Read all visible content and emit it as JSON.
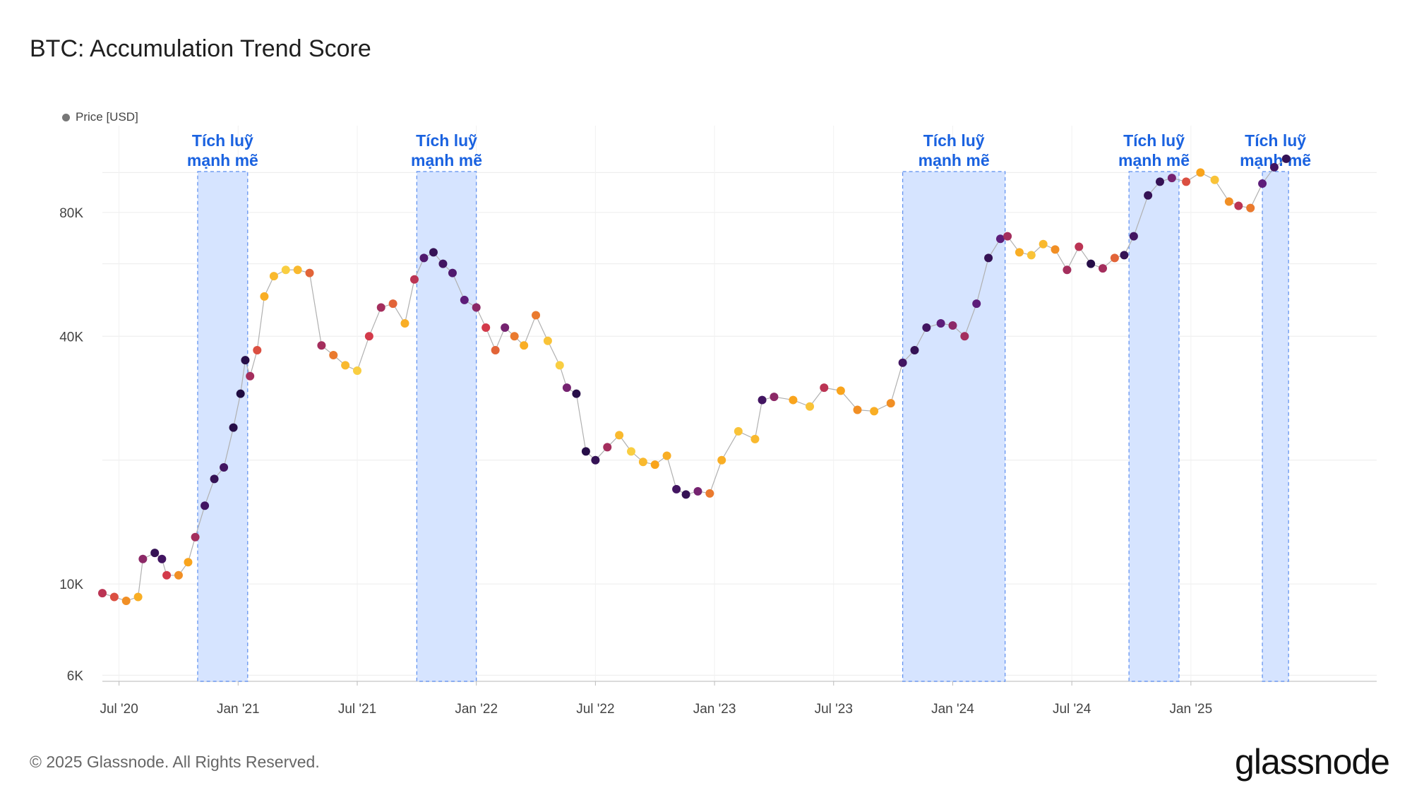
{
  "header": {
    "title": "BTC: Accumulation Trend Score"
  },
  "legend": {
    "label": "Price [USD]"
  },
  "footer": {
    "copyright": "© 2025 Glassnode. All Rights Reserved.",
    "brand": "glassnode"
  },
  "colors": {
    "band_fill": "#d6e4ff",
    "band_stroke": "#5b8def",
    "band_label": "#1a62e0",
    "score_high": "#1a0a3c",
    "score_mid": "#d33a4a",
    "score_low": "#f9d84a"
  },
  "chart_data": {
    "type": "scatter",
    "title": "BTC: Accumulation Trend Score",
    "series_name": "Price [USD]",
    "y_scale": "log",
    "ylim": [
      5800,
      130000
    ],
    "xlim": [
      2020.43,
      2025.78
    ],
    "y_ticks": [
      {
        "value": 6000,
        "label": "6K"
      },
      {
        "value": 10000,
        "label": "10K"
      },
      {
        "value": 40000,
        "label": "40K"
      },
      {
        "value": 80000,
        "label": "80K"
      }
    ],
    "y_grid": [
      6000,
      10000,
      20000,
      40000,
      60000,
      80000,
      100000
    ],
    "x_ticks": [
      {
        "value": 2020.5,
        "label": "Jul '20"
      },
      {
        "value": 2021.0,
        "label": "Jan '21"
      },
      {
        "value": 2021.5,
        "label": "Jul '21"
      },
      {
        "value": 2022.0,
        "label": "Jan '22"
      },
      {
        "value": 2022.5,
        "label": "Jul '22"
      },
      {
        "value": 2023.0,
        "label": "Jan '23"
      },
      {
        "value": 2023.5,
        "label": "Jul '23"
      },
      {
        "value": 2024.0,
        "label": "Jan '24"
      },
      {
        "value": 2024.5,
        "label": "Jul '24"
      },
      {
        "value": 2025.0,
        "label": "Jan '25"
      }
    ],
    "bands": [
      {
        "start": 2020.83,
        "end": 2021.04,
        "label_line1": "Tích luỹ",
        "label_line2": "mạnh mẽ"
      },
      {
        "start": 2021.75,
        "end": 2022.0,
        "label_line1": "Tích luỹ",
        "label_line2": "mạnh mẽ"
      },
      {
        "start": 2023.79,
        "end": 2024.22,
        "label_line1": "Tích luỹ",
        "label_line2": "mạnh mẽ"
      },
      {
        "start": 2024.74,
        "end": 2024.95,
        "label_line1": "Tích luỹ",
        "label_line2": "mạnh mẽ"
      },
      {
        "start": 2025.3,
        "end": 2025.41,
        "label_line1": "Tích luỹ",
        "label_line2": "mạnh mẽ"
      }
    ],
    "points": [
      [
        2020.43,
        9500,
        0.55
      ],
      [
        2020.48,
        9300,
        0.45
      ],
      [
        2020.53,
        9100,
        0.3
      ],
      [
        2020.58,
        9300,
        0.2
      ],
      [
        2020.6,
        11500,
        0.65
      ],
      [
        2020.65,
        11900,
        0.9
      ],
      [
        2020.68,
        11500,
        0.85
      ],
      [
        2020.7,
        10500,
        0.5
      ],
      [
        2020.75,
        10500,
        0.3
      ],
      [
        2020.79,
        11300,
        0.25
      ],
      [
        2020.82,
        13000,
        0.6
      ],
      [
        2020.86,
        15500,
        0.85
      ],
      [
        2020.9,
        18000,
        0.9
      ],
      [
        2020.94,
        19200,
        0.85
      ],
      [
        2020.98,
        24000,
        0.95
      ],
      [
        2021.01,
        29000,
        0.98
      ],
      [
        2021.03,
        35000,
        0.95
      ],
      [
        2021.05,
        32000,
        0.6
      ],
      [
        2021.08,
        37000,
        0.45
      ],
      [
        2021.11,
        50000,
        0.2
      ],
      [
        2021.15,
        56000,
        0.15
      ],
      [
        2021.2,
        58000,
        0.05
      ],
      [
        2021.25,
        58000,
        0.15
      ],
      [
        2021.3,
        57000,
        0.4
      ],
      [
        2021.35,
        38000,
        0.6
      ],
      [
        2021.4,
        36000,
        0.35
      ],
      [
        2021.45,
        34000,
        0.15
      ],
      [
        2021.5,
        33000,
        0.05
      ],
      [
        2021.55,
        40000,
        0.5
      ],
      [
        2021.6,
        47000,
        0.6
      ],
      [
        2021.65,
        48000,
        0.4
      ],
      [
        2021.7,
        43000,
        0.2
      ],
      [
        2021.74,
        55000,
        0.55
      ],
      [
        2021.78,
        62000,
        0.8
      ],
      [
        2021.82,
        64000,
        0.9
      ],
      [
        2021.86,
        60000,
        0.85
      ],
      [
        2021.9,
        57000,
        0.8
      ],
      [
        2021.95,
        49000,
        0.75
      ],
      [
        2022.0,
        47000,
        0.65
      ],
      [
        2022.04,
        42000,
        0.5
      ],
      [
        2022.08,
        37000,
        0.4
      ],
      [
        2022.12,
        42000,
        0.7
      ],
      [
        2022.16,
        40000,
        0.35
      ],
      [
        2022.2,
        38000,
        0.2
      ],
      [
        2022.25,
        45000,
        0.35
      ],
      [
        2022.3,
        39000,
        0.1
      ],
      [
        2022.35,
        34000,
        0.05
      ],
      [
        2022.38,
        30000,
        0.7
      ],
      [
        2022.42,
        29000,
        0.95
      ],
      [
        2022.46,
        21000,
        0.95
      ],
      [
        2022.5,
        20000,
        0.9
      ],
      [
        2022.55,
        21500,
        0.6
      ],
      [
        2022.6,
        23000,
        0.15
      ],
      [
        2022.65,
        21000,
        0.05
      ],
      [
        2022.7,
        19800,
        0.15
      ],
      [
        2022.75,
        19500,
        0.25
      ],
      [
        2022.8,
        20500,
        0.2
      ],
      [
        2022.84,
        17000,
        0.85
      ],
      [
        2022.88,
        16500,
        0.9
      ],
      [
        2022.93,
        16800,
        0.7
      ],
      [
        2022.98,
        16600,
        0.35
      ],
      [
        2023.03,
        20000,
        0.2
      ],
      [
        2023.1,
        23500,
        0.1
      ],
      [
        2023.17,
        22500,
        0.15
      ],
      [
        2023.2,
        28000,
        0.85
      ],
      [
        2023.25,
        28500,
        0.65
      ],
      [
        2023.33,
        28000,
        0.25
      ],
      [
        2023.4,
        27000,
        0.1
      ],
      [
        2023.46,
        30000,
        0.55
      ],
      [
        2023.53,
        29500,
        0.25
      ],
      [
        2023.6,
        26500,
        0.3
      ],
      [
        2023.67,
        26300,
        0.2
      ],
      [
        2023.74,
        27500,
        0.3
      ],
      [
        2023.79,
        34500,
        0.85
      ],
      [
        2023.84,
        37000,
        0.9
      ],
      [
        2023.89,
        42000,
        0.85
      ],
      [
        2023.95,
        43000,
        0.75
      ],
      [
        2024.0,
        42500,
        0.65
      ],
      [
        2024.05,
        40000,
        0.6
      ],
      [
        2024.1,
        48000,
        0.75
      ],
      [
        2024.15,
        62000,
        0.9
      ],
      [
        2024.2,
        69000,
        0.75
      ],
      [
        2024.23,
        70000,
        0.6
      ],
      [
        2024.28,
        64000,
        0.2
      ],
      [
        2024.33,
        63000,
        0.1
      ],
      [
        2024.38,
        67000,
        0.15
      ],
      [
        2024.43,
        65000,
        0.3
      ],
      [
        2024.48,
        58000,
        0.6
      ],
      [
        2024.53,
        66000,
        0.55
      ],
      [
        2024.58,
        60000,
        0.95
      ],
      [
        2024.63,
        58500,
        0.6
      ],
      [
        2024.68,
        62000,
        0.4
      ],
      [
        2024.72,
        63000,
        0.9
      ],
      [
        2024.76,
        70000,
        0.85
      ],
      [
        2024.82,
        88000,
        0.9
      ],
      [
        2024.87,
        95000,
        0.9
      ],
      [
        2024.92,
        97000,
        0.7
      ],
      [
        2024.98,
        95000,
        0.45
      ],
      [
        2025.04,
        100000,
        0.25
      ],
      [
        2025.1,
        96000,
        0.1
      ],
      [
        2025.16,
        85000,
        0.3
      ],
      [
        2025.2,
        83000,
        0.55
      ],
      [
        2025.25,
        82000,
        0.35
      ],
      [
        2025.3,
        94000,
        0.75
      ],
      [
        2025.35,
        103000,
        0.85
      ],
      [
        2025.4,
        108000,
        0.9
      ]
    ]
  }
}
